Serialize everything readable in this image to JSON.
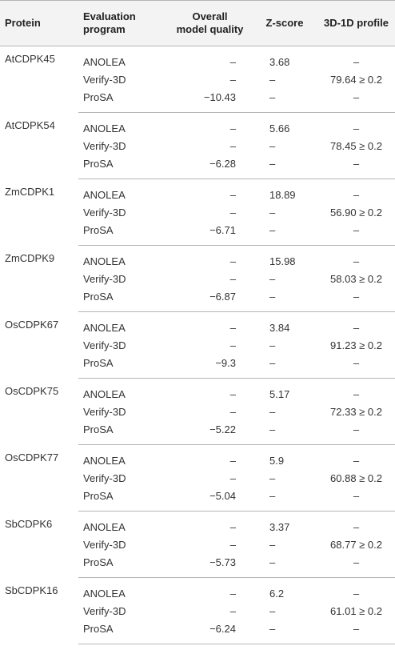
{
  "headers": {
    "protein": "Protein",
    "program_line1": "Evaluation",
    "program_line2": "program",
    "quality_line1": "Overall",
    "quality_line2": "model quality",
    "zscore": "Z-score",
    "profile": "3D-1D profile"
  },
  "rows": [
    {
      "protein": "AtCDPK45",
      "programs": [
        "ANOLEA",
        "Verify-3D",
        "ProSA"
      ],
      "quality": [
        "–",
        "–",
        "−10.43"
      ],
      "zscore": [
        "3.68",
        "–",
        "–"
      ],
      "profile": [
        "–",
        "79.64 ≥ 0.2",
        "–"
      ]
    },
    {
      "protein": "AtCDPK54",
      "programs": [
        "ANOLEA",
        "Verify-3D",
        "ProSA"
      ],
      "quality": [
        "–",
        "–",
        "−6.28"
      ],
      "zscore": [
        "5.66",
        "–",
        "–"
      ],
      "profile": [
        "–",
        "78.45 ≥ 0.2",
        "–"
      ]
    },
    {
      "protein": "ZmCDPK1",
      "programs": [
        "ANOLEA",
        "Verify-3D",
        "ProSA"
      ],
      "quality": [
        "–",
        "–",
        "−6.71"
      ],
      "zscore": [
        "18.89",
        "–",
        "–"
      ],
      "profile": [
        "–",
        "56.90 ≥ 0.2",
        "–"
      ]
    },
    {
      "protein": "ZmCDPK9",
      "programs": [
        "ANOLEA",
        "Verify-3D",
        "ProSA"
      ],
      "quality": [
        "–",
        "–",
        "−6.87"
      ],
      "zscore": [
        "15.98",
        "–",
        "–"
      ],
      "profile": [
        "–",
        "58.03 ≥ 0.2",
        "–"
      ]
    },
    {
      "protein": "OsCDPK67",
      "programs": [
        "ANOLEA",
        "Verify-3D",
        "ProSA"
      ],
      "quality": [
        "–",
        "–",
        "−9.3"
      ],
      "zscore": [
        "3.84",
        "–",
        "–"
      ],
      "profile": [
        "–",
        "91.23 ≥ 0.2",
        "–"
      ]
    },
    {
      "protein": "OsCDPK75",
      "programs": [
        "ANOLEA",
        "Verify-3D",
        "ProSA"
      ],
      "quality": [
        "–",
        "–",
        "−5.22"
      ],
      "zscore": [
        "5.17",
        "–",
        "–"
      ],
      "profile": [
        "–",
        "72.33 ≥ 0.2",
        "–"
      ]
    },
    {
      "protein": "OsCDPK77",
      "programs": [
        "ANOLEA",
        "Verify-3D",
        "ProSA"
      ],
      "quality": [
        "–",
        "–",
        "−5.04"
      ],
      "zscore": [
        "5.9",
        "–",
        "–"
      ],
      "profile": [
        "–",
        "60.88 ≥ 0.2",
        "–"
      ]
    },
    {
      "protein": "SbCDPK6",
      "programs": [
        "ANOLEA",
        "Verify-3D",
        "ProSA"
      ],
      "quality": [
        "–",
        "–",
        "−5.73"
      ],
      "zscore": [
        "3.37",
        "–",
        "–"
      ],
      "profile": [
        "–",
        "68.77 ≥ 0.2",
        "–"
      ]
    },
    {
      "protein": "SbCDPK16",
      "programs": [
        "ANOLEA",
        "Verify-3D",
        "ProSA"
      ],
      "quality": [
        "–",
        "–",
        "−6.24"
      ],
      "zscore": [
        "6.2",
        "–",
        "–"
      ],
      "profile": [
        "–",
        "61.01 ≥ 0.2",
        "–"
      ]
    }
  ]
}
